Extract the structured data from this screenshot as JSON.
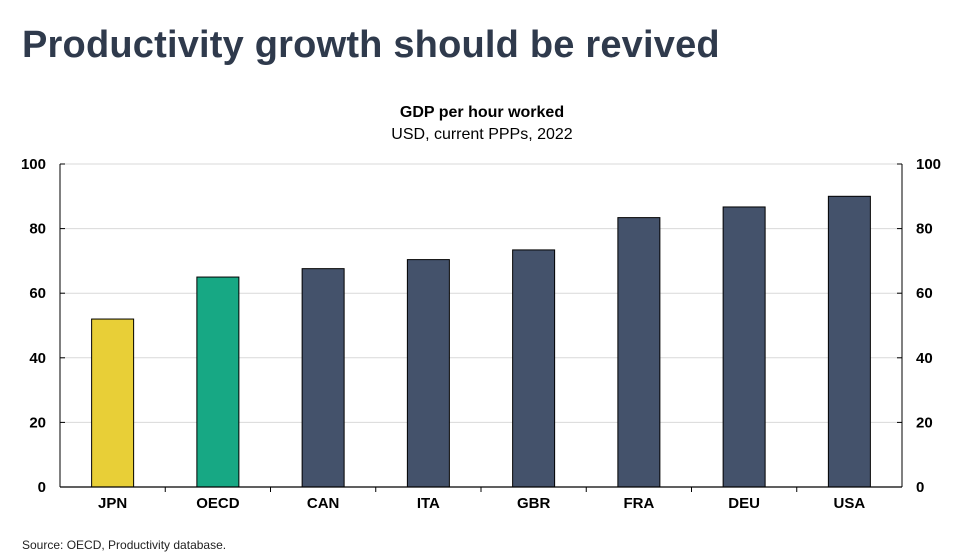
{
  "slide": {
    "title": "Productivity growth should be revived",
    "source": "Source: OECD, Productivity database."
  },
  "colors": {
    "highlight_jpn": "#e8cf37",
    "highlight_oecd": "#17a884",
    "default_bar": "#44526b",
    "title": "#2f3a4c"
  },
  "chart_data": {
    "type": "bar",
    "title": "GDP per hour worked",
    "subtitle": "USD, current PPPs, 2022",
    "categories": [
      "JPN",
      "OECD",
      "CAN",
      "ITA",
      "GBR",
      "FRA",
      "DEU",
      "USA"
    ],
    "values": [
      52,
      65,
      67.6,
      70.4,
      73.4,
      83.4,
      86.7,
      90
    ],
    "bar_colors": [
      "#e8cf37",
      "#17a884",
      "#44526b",
      "#44526b",
      "#44526b",
      "#44526b",
      "#44526b",
      "#44526b"
    ],
    "ylim": [
      0,
      100
    ],
    "yticks": [
      0,
      20,
      40,
      60,
      80,
      100
    ],
    "y_axis_left": true,
    "y_axis_right": true,
    "grid": true
  }
}
